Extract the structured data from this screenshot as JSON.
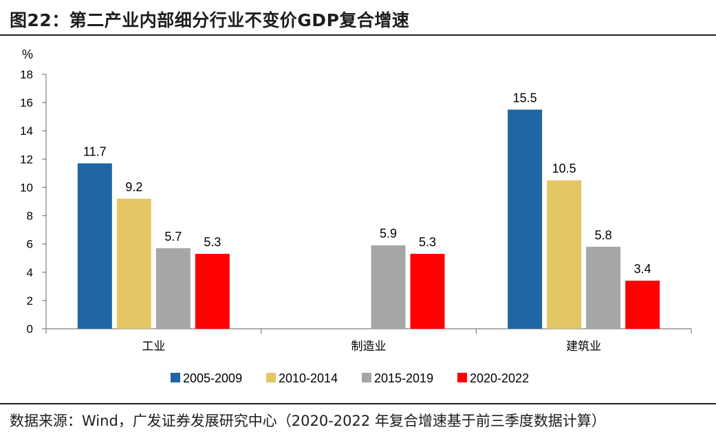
{
  "figure": {
    "title": "图22：第二产业内部细分行业不变价GDP复合增速",
    "source": "数据来源：Wind，广发证券发展研究中心（2020-2022 年复合增速基于前三季度数据计算）"
  },
  "chart_data": {
    "type": "bar",
    "ylabel": "%",
    "ylim": [
      0,
      18
    ],
    "yticks": [
      0,
      2,
      4,
      6,
      8,
      10,
      12,
      14,
      16,
      18
    ],
    "categories": [
      "工业",
      "制造业",
      "建筑业"
    ],
    "series": [
      {
        "name": "2005-2009",
        "color": "#1f66a4",
        "values": [
          11.7,
          null,
          15.5
        ]
      },
      {
        "name": "2010-2014",
        "color": "#e5c665",
        "values": [
          9.2,
          null,
          10.5
        ]
      },
      {
        "name": "2015-2019",
        "color": "#a6a6a6",
        "values": [
          5.7,
          5.9,
          5.8
        ]
      },
      {
        "name": "2020-2022",
        "color": "#ff0000",
        "values": [
          5.3,
          5.3,
          3.4
        ]
      }
    ],
    "legend_position": "bottom",
    "grid": false
  }
}
